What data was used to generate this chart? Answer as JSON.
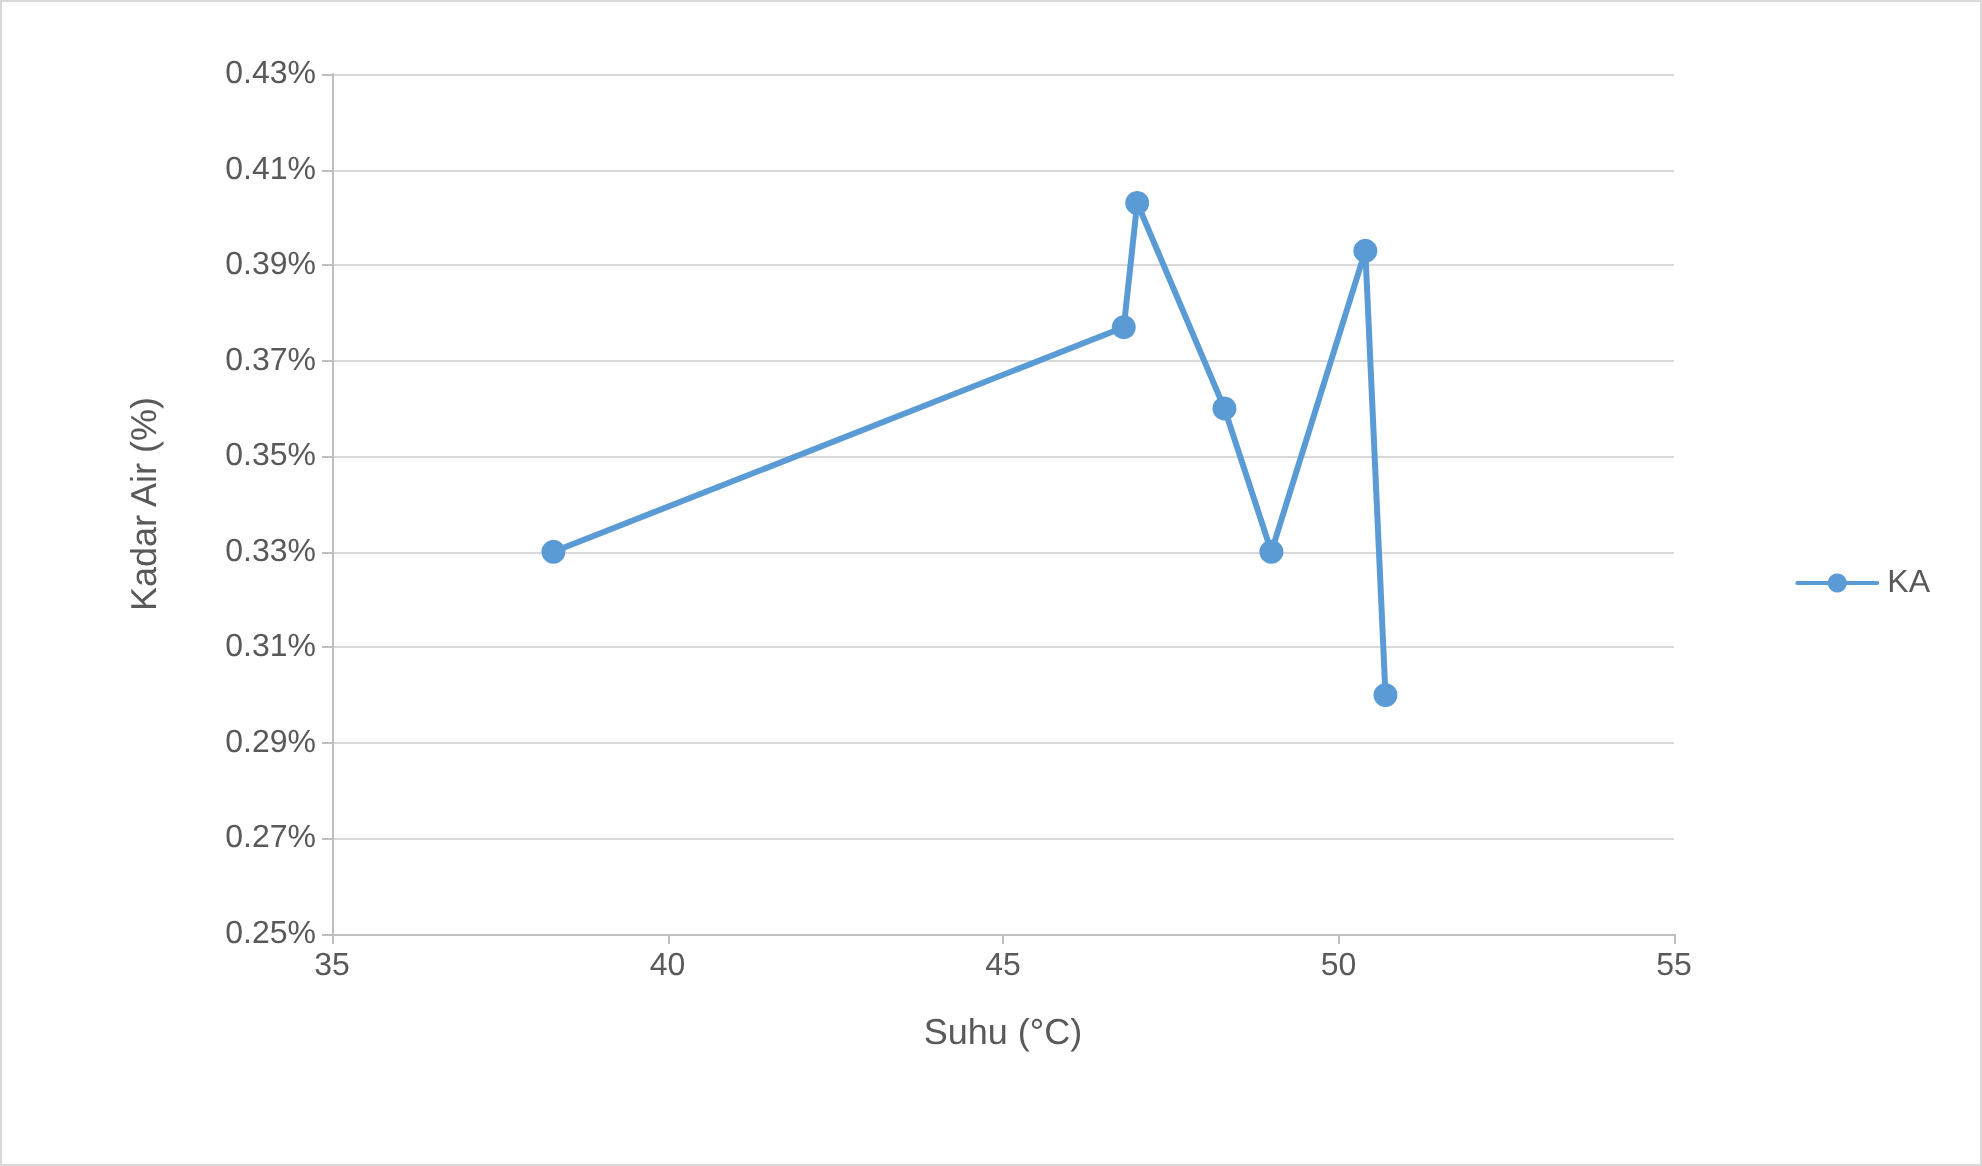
{
  "chart_data": {
    "type": "line",
    "xlabel": "Suhu (°C)",
    "ylabel": "Kadar Air (%)",
    "x": [
      38.3,
      46.8,
      47.0,
      48.3,
      49.0,
      50.4,
      50.7
    ],
    "series": [
      {
        "name": "KA",
        "color": "#5b9bd5",
        "values": [
          0.33,
          0.377,
          0.403,
          0.36,
          0.33,
          0.393,
          0.3
        ]
      }
    ],
    "xlim": [
      35,
      55
    ],
    "xticks": [
      35,
      40,
      45,
      50,
      55
    ],
    "ylim": [
      0.25,
      0.43
    ],
    "yticks": [
      {
        "value": 0.25,
        "label": "0.25%"
      },
      {
        "value": 0.27,
        "label": "0.27%"
      },
      {
        "value": 0.29,
        "label": "0.29%"
      },
      {
        "value": 0.31,
        "label": "0.31%"
      },
      {
        "value": 0.33,
        "label": "0.33%"
      },
      {
        "value": 0.35,
        "label": "0.35%"
      },
      {
        "value": 0.37,
        "label": "0.37%"
      },
      {
        "value": 0.39,
        "label": "0.39%"
      },
      {
        "value": 0.41,
        "label": "0.41%"
      },
      {
        "value": 0.43,
        "label": "0.43%"
      }
    ],
    "grid": "y",
    "legend": "right",
    "marker": "circle",
    "line_style": "solid"
  }
}
